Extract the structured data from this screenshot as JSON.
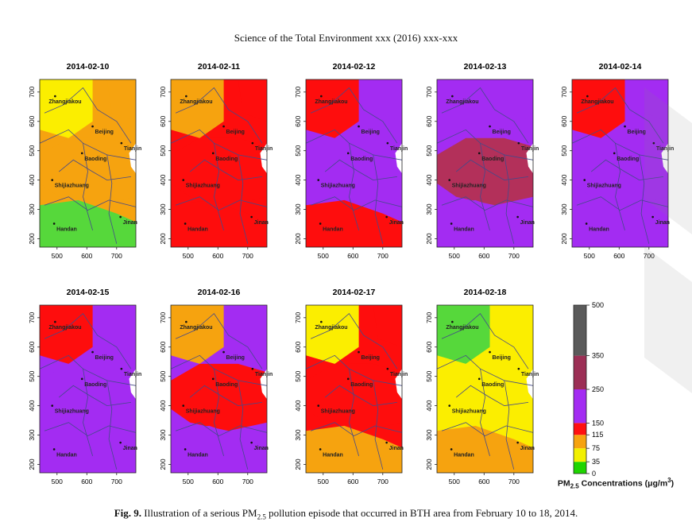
{
  "header": {
    "journal_line": "Science of the Total Environment xxx (2016) xxx-xxx"
  },
  "panels": [
    {
      "date": "2014-02-10",
      "palette": [
        "#f6a30f",
        "#fbee00",
        "#f6a30f",
        "#56d83b",
        "#f6a30f"
      ]
    },
    {
      "date": "2014-02-11",
      "palette": [
        "#fe0d0d",
        "#f6a30f",
        "#fe0d0d",
        "#fe0d0d",
        "#fe0d0d"
      ]
    },
    {
      "date": "2014-02-12",
      "palette": [
        "#a32cf2",
        "#fe0d0d",
        "#a32cf2",
        "#fe0d0d",
        "#a32cf2"
      ]
    },
    {
      "date": "2014-02-13",
      "palette": [
        "#a32cf2",
        "#a32cf2",
        "#b3305a",
        "#a32cf2",
        "#a32cf2"
      ]
    },
    {
      "date": "2014-02-14",
      "palette": [
        "#a32cf2",
        "#fe0d0d",
        "#a32cf2",
        "#a32cf2",
        "#a32cf2"
      ]
    },
    {
      "date": "2014-02-15",
      "palette": [
        "#a32cf2",
        "#fe0d0d",
        "#a32cf2",
        "#a32cf2",
        "#a32cf2"
      ]
    },
    {
      "date": "2014-02-16",
      "palette": [
        "#a32cf2",
        "#f6a30f",
        "#fe0d0d",
        "#a32cf2",
        "#a32cf2"
      ]
    },
    {
      "date": "2014-02-17",
      "palette": [
        "#fe0d0d",
        "#fbee00",
        "#fe0d0d",
        "#f6a30f",
        "#fe0d0d"
      ]
    },
    {
      "date": "2014-02-18",
      "palette": [
        "#fbee00",
        "#56d83b",
        "#fbee00",
        "#f6a30f",
        "#fbee00"
      ]
    }
  ],
  "cities": [
    "Zhangjiakou",
    "Beijing",
    "Tianjin",
    "Baoding",
    "Shijiazhuang",
    "Handan",
    "Jinan"
  ],
  "axes": {
    "x_ticks": [
      "500",
      "600",
      "700"
    ],
    "y_ticks": [
      "200",
      "300",
      "400",
      "500",
      "600",
      "700"
    ]
  },
  "colorbar": {
    "title_text": "PM",
    "title_sub": "2.5",
    "title_rest": " Concentrations (μg/m",
    "title_sup": "3",
    "title_end": ")",
    "bands": [
      {
        "from": 0,
        "to": 35,
        "color": "#1ed500"
      },
      {
        "from": 35,
        "to": 75,
        "color": "#f2f000"
      },
      {
        "from": 75,
        "to": 115,
        "color": "#f6a30f"
      },
      {
        "from": 115,
        "to": 150,
        "color": "#ff1010"
      },
      {
        "from": 150,
        "to": 250,
        "color": "#a32cf2"
      },
      {
        "from": 250,
        "to": 350,
        "color": "#9c2f55"
      },
      {
        "from": 350,
        "to": 500,
        "color": "#5a5a5a"
      }
    ],
    "tick_labels": [
      "500",
      "350",
      "250",
      "150",
      "115",
      "75",
      "35",
      "0"
    ]
  },
  "caption": {
    "label": "Fig. 9.",
    "text_before": "  Illustration of a serious PM",
    "sub": "2.5",
    "text_after": " pollution episode that occurred in BTH area from February 10 to 18, 2014."
  }
}
